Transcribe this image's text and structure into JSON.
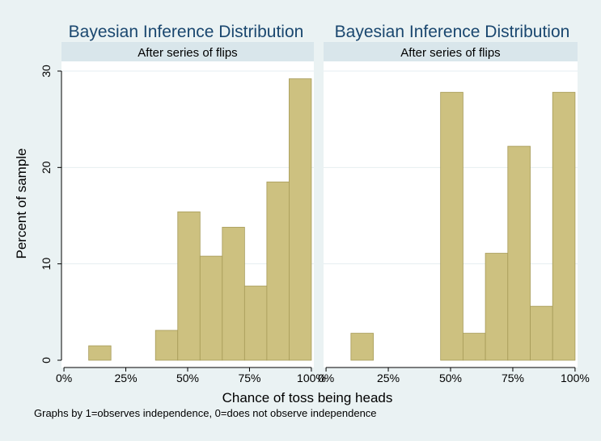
{
  "figure": {
    "xlabel": "Chance of toss being heads",
    "ylabel": "Percent of sample",
    "note": "Graphs by 1=observes independence, 0=does not observe independence",
    "colors": {
      "background": "#eaf2f3",
      "plot_area": "#ffffff",
      "strip": "#d9e6eb",
      "bar_fill": "#cdc180",
      "bar_edge": "#a69a57",
      "gridline": "#e6eef0",
      "title": "#1a476f",
      "text": "#000000"
    }
  },
  "chart_data": [
    {
      "type": "bar",
      "title": "Bayesian Inference Distribution",
      "subtitle": "After series of flips",
      "xlabel": "Chance of toss being heads",
      "ylabel": "Percent of sample",
      "xlim": [
        -0.01,
        1.01
      ],
      "ylim": [
        0,
        30
      ],
      "x_ticks": [
        0,
        0.25,
        0.5,
        0.75,
        1.0
      ],
      "x_tick_labels": [
        "0%",
        "25%",
        "50%",
        "75%",
        "100%"
      ],
      "y_ticks": [
        0,
        10,
        20,
        30
      ],
      "y_tick_labels": [
        "0",
        "10",
        "20",
        "30"
      ],
      "grid": true,
      "bars": [
        {
          "x0": 0.1,
          "x1": 0.19,
          "value": 1.5
        },
        {
          "x0": 0.37,
          "x1": 0.46,
          "value": 3.1
        },
        {
          "x0": 0.46,
          "x1": 0.55,
          "value": 15.4
        },
        {
          "x0": 0.55,
          "x1": 0.64,
          "value": 10.8
        },
        {
          "x0": 0.64,
          "x1": 0.73,
          "value": 13.8
        },
        {
          "x0": 0.73,
          "x1": 0.82,
          "value": 7.7
        },
        {
          "x0": 0.82,
          "x1": 0.91,
          "value": 18.5
        },
        {
          "x0": 0.91,
          "x1": 1.0,
          "value": 29.2
        }
      ]
    },
    {
      "type": "bar",
      "title": "Bayesian Inference Distribution",
      "subtitle": "After series of flips",
      "xlabel": "Chance of toss being heads",
      "ylabel": "Percent of sample",
      "xlim": [
        -0.01,
        1.01
      ],
      "ylim": [
        0,
        30
      ],
      "x_ticks": [
        0,
        0.25,
        0.5,
        0.75,
        1.0
      ],
      "x_tick_labels": [
        "0%",
        "25%",
        "50%",
        "75%",
        "100%"
      ],
      "y_ticks": [
        0,
        10,
        20,
        30
      ],
      "y_tick_labels": [
        "0",
        "10",
        "20",
        "30"
      ],
      "grid": true,
      "bars": [
        {
          "x0": 0.1,
          "x1": 0.19,
          "value": 2.8
        },
        {
          "x0": 0.46,
          "x1": 0.55,
          "value": 27.8
        },
        {
          "x0": 0.55,
          "x1": 0.64,
          "value": 2.8
        },
        {
          "x0": 0.64,
          "x1": 0.73,
          "value": 11.1
        },
        {
          "x0": 0.73,
          "x1": 0.82,
          "value": 22.2
        },
        {
          "x0": 0.82,
          "x1": 0.91,
          "value": 5.6
        },
        {
          "x0": 0.91,
          "x1": 1.0,
          "value": 27.8
        }
      ]
    }
  ]
}
